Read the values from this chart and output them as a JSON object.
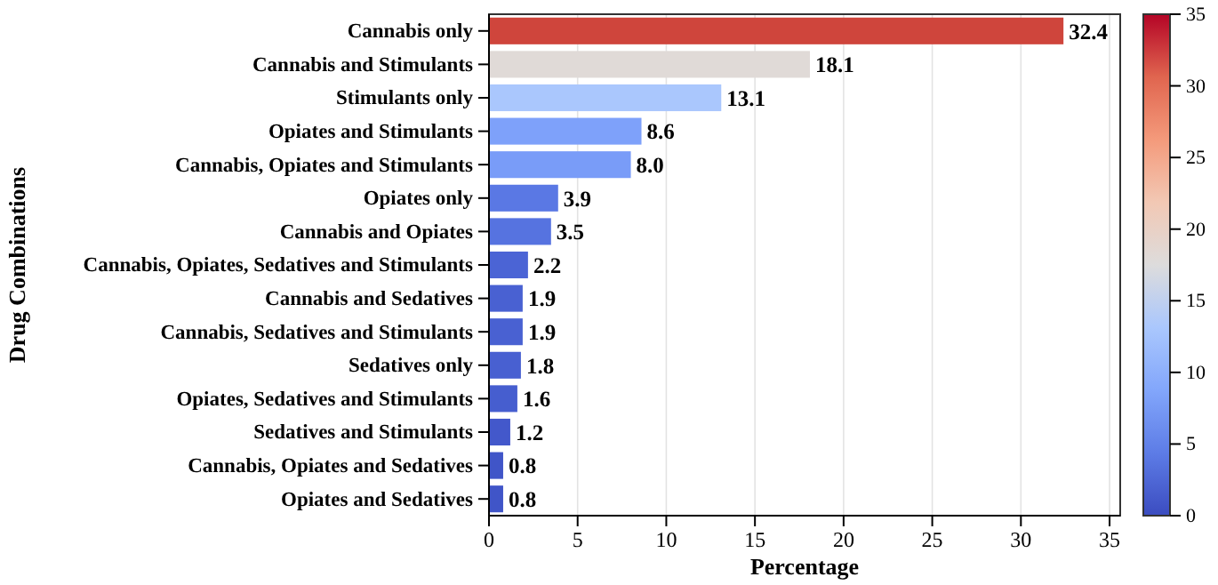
{
  "chart_data": {
    "type": "bar",
    "orientation": "horizontal",
    "xlabel": "Percentage",
    "ylabel": "Drug Combinations",
    "categories": [
      "Cannabis only",
      "Cannabis and Stimulants",
      "Stimulants only",
      "Opiates and Stimulants",
      "Cannabis, Opiates and Stimulants",
      "Opiates only",
      "Cannabis and Opiates",
      "Cannabis, Opiates, Sedatives and Stimulants",
      "Cannabis and Sedatives",
      "Cannabis, Sedatives and Stimulants",
      "Sedatives only",
      "Opiates, Sedatives and Stimulants",
      "Sedatives and Stimulants",
      "Cannabis, Opiates and Sedatives",
      "Opiates and Sedatives"
    ],
    "values": [
      32.4,
      18.1,
      13.1,
      8.6,
      8.0,
      3.9,
      3.5,
      2.2,
      1.9,
      1.9,
      1.8,
      1.6,
      1.2,
      0.8,
      0.8
    ],
    "value_labels": [
      "32.4",
      "18.1",
      "13.1",
      "8.6",
      "8.0",
      "3.9",
      "3.5",
      "2.2",
      "1.9",
      "1.9",
      "1.8",
      "1.6",
      "1.2",
      "0.8",
      "0.8"
    ],
    "colors": [
      "#cf453c",
      "#e0dad7",
      "#aac7fd",
      "#7ea1fa",
      "#799cf8",
      "#5a78e4",
      "#5673e0",
      "#4b64d5",
      "#4961d2",
      "#4961d2",
      "#4860d1",
      "#465ecf",
      "#4358cb",
      "#4055c8",
      "#4055c8"
    ],
    "xlim": [
      0,
      35.6
    ],
    "xticks": [
      0,
      5,
      10,
      15,
      20,
      25,
      30,
      35
    ],
    "grid": "x",
    "clim": [
      0,
      35
    ],
    "cticks": [
      0,
      5,
      10,
      15,
      20,
      25,
      30,
      35
    ]
  }
}
